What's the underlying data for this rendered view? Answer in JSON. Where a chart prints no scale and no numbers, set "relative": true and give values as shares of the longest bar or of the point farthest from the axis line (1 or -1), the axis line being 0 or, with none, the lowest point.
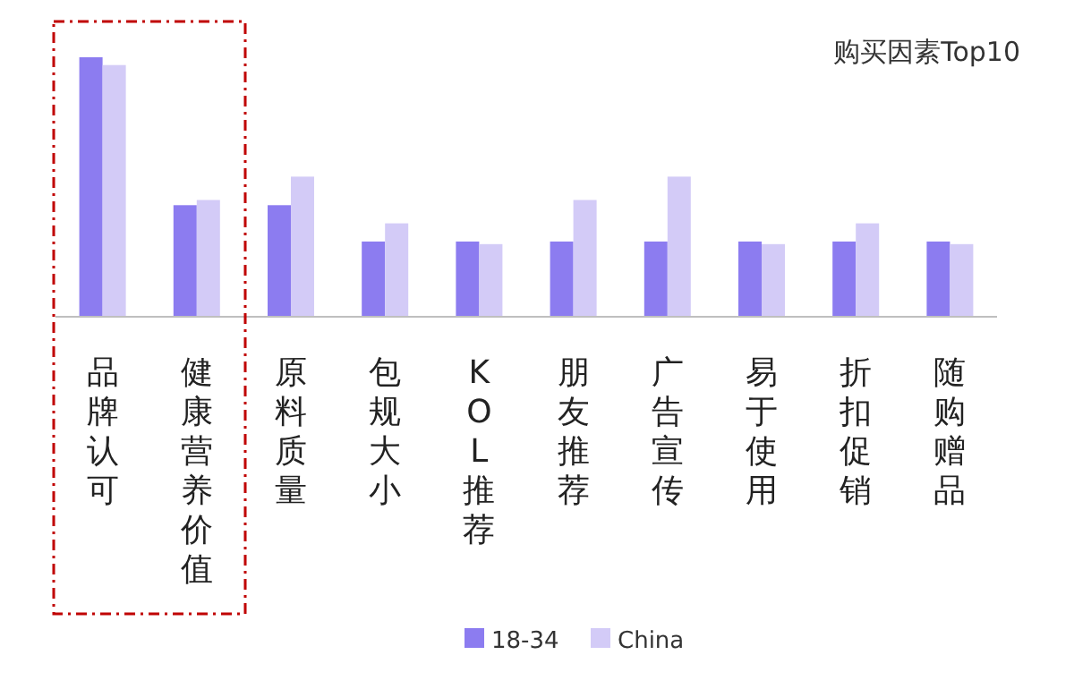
{
  "chart_data": {
    "type": "bar",
    "title": "购买因素Top10",
    "relative": true,
    "legend": "bottom",
    "categories": [
      "品牌认可",
      "健康营养价值",
      "原料质量",
      "包规大小",
      "KOL推荐",
      "朋友推荐",
      "广告宣传",
      "易于使用",
      "折扣促销",
      "随购赠品"
    ],
    "series": [
      {
        "name": "18-34",
        "color": "#8c7cf0",
        "values": [
          1,
          0.43,
          0.43,
          0.29,
          0.29,
          0.29,
          0.29,
          0.29,
          0.29,
          0.29
        ]
      },
      {
        "name": "China",
        "color": "#d3cbf7",
        "values": [
          0.97,
          0.45,
          0.54,
          0.36,
          0.28,
          0.45,
          0.54,
          0.28,
          0.36,
          0.28
        ]
      }
    ]
  }
}
